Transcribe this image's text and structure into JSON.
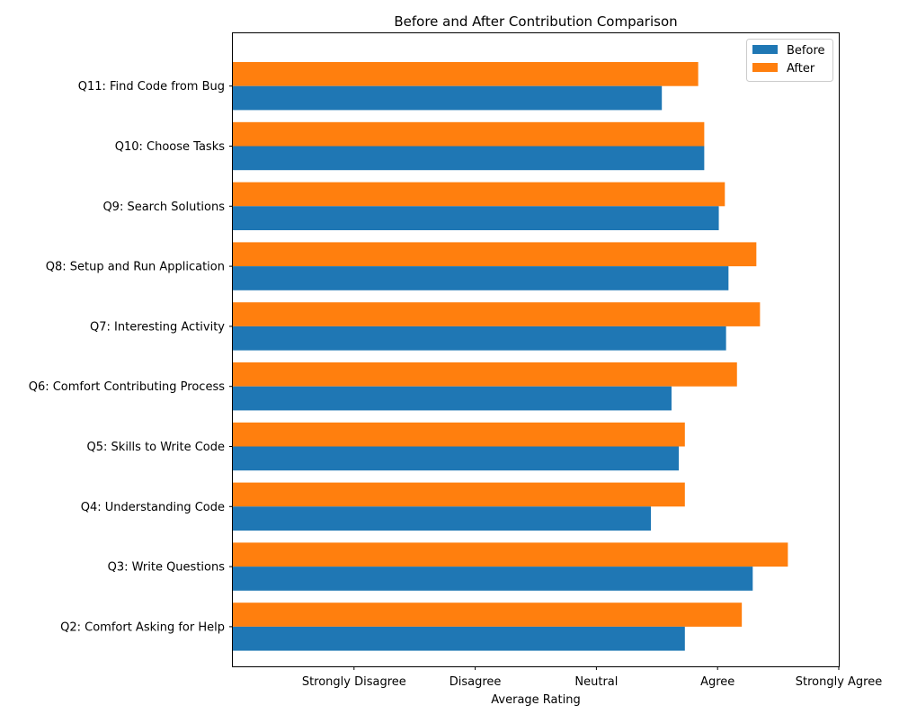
{
  "chart_data": {
    "type": "bar",
    "orientation": "horizontal",
    "title": "Before and After Contribution Comparison",
    "xlabel": "Average Rating",
    "ylabel": "",
    "xlim": [
      -0.0,
      5.0
    ],
    "x_ticks": [
      {
        "value": 1,
        "label": "Strongly Disagree"
      },
      {
        "value": 2,
        "label": "Disagree"
      },
      {
        "value": 3,
        "label": "Neutral"
      },
      {
        "value": 4,
        "label": "Agree"
      },
      {
        "value": 5,
        "label": "Strongly Agree"
      }
    ],
    "categories": [
      "Q11: Find Code from Bug",
      "Q10: Choose Tasks",
      "Q9: Search Solutions",
      "Q8: Setup and Run Application",
      "Q7: Interesting Activity",
      "Q6: Comfort Contributing Process",
      "Q5: Skills to Write Code",
      "Q4: Understanding Code",
      "Q3: Write Questions",
      "Q2: Comfort Asking for Help"
    ],
    "series": [
      {
        "name": "Before",
        "color": "#1f77b4",
        "values": [
          3.54,
          3.89,
          4.01,
          4.09,
          4.07,
          3.62,
          3.68,
          3.45,
          4.29,
          3.73
        ]
      },
      {
        "name": "After",
        "color": "#ff7f0e",
        "values": [
          3.84,
          3.89,
          4.06,
          4.32,
          4.35,
          4.16,
          3.73,
          3.73,
          4.58,
          4.2
        ]
      }
    ],
    "legend_position": "top-right",
    "grid": false
  }
}
